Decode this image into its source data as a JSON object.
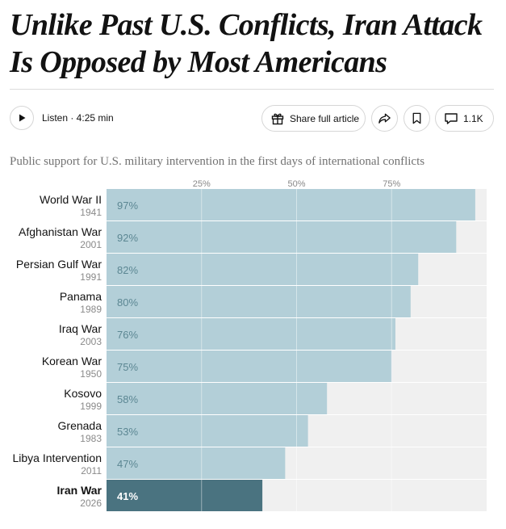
{
  "article": {
    "headline": "Unlike Past U.S. Conflicts, Iran Attack Is Opposed by Most Americans",
    "listen_label": "Listen · 4:25 min",
    "share_label": "Share full article",
    "comments_count": "1.1K"
  },
  "icons": {
    "play": "play-icon",
    "gift": "gift-icon",
    "share": "share-forward-icon",
    "bookmark": "bookmark-icon",
    "comment": "comment-icon"
  },
  "colors": {
    "bar": "#b3cfd8",
    "bar_highlight": "#4a7380",
    "track": "#f0f0f0",
    "value_text": "#5c8793",
    "value_text_highlight": "#ffffff"
  },
  "chart_data": {
    "type": "bar",
    "orientation": "horizontal",
    "title": "Public support for U.S. military intervention in the first days of international conflicts",
    "xlim": [
      0,
      100
    ],
    "x_ticks": [
      "25%",
      "50%",
      "75%"
    ],
    "x_tick_values": [
      25,
      50,
      75
    ],
    "grid": true,
    "categories": [
      {
        "name": "World War II",
        "year": "1941",
        "value": 97,
        "label": "97%",
        "highlight": false
      },
      {
        "name": "Afghanistan War",
        "year": "2001",
        "value": 92,
        "label": "92%",
        "highlight": false
      },
      {
        "name": "Persian Gulf War",
        "year": "1991",
        "value": 82,
        "label": "82%",
        "highlight": false
      },
      {
        "name": "Panama",
        "year": "1989",
        "value": 80,
        "label": "80%",
        "highlight": false
      },
      {
        "name": "Iraq War",
        "year": "2003",
        "value": 76,
        "label": "76%",
        "highlight": false
      },
      {
        "name": "Korean War",
        "year": "1950",
        "value": 75,
        "label": "75%",
        "highlight": false
      },
      {
        "name": "Kosovo",
        "year": "1999",
        "value": 58,
        "label": "58%",
        "highlight": false
      },
      {
        "name": "Grenada",
        "year": "1983",
        "value": 53,
        "label": "53%",
        "highlight": false
      },
      {
        "name": "Libya Intervention",
        "year": "2011",
        "value": 47,
        "label": "47%",
        "highlight": false
      },
      {
        "name": "Iran War",
        "year": "2026",
        "value": 41,
        "label": "41%",
        "highlight": true
      }
    ]
  }
}
